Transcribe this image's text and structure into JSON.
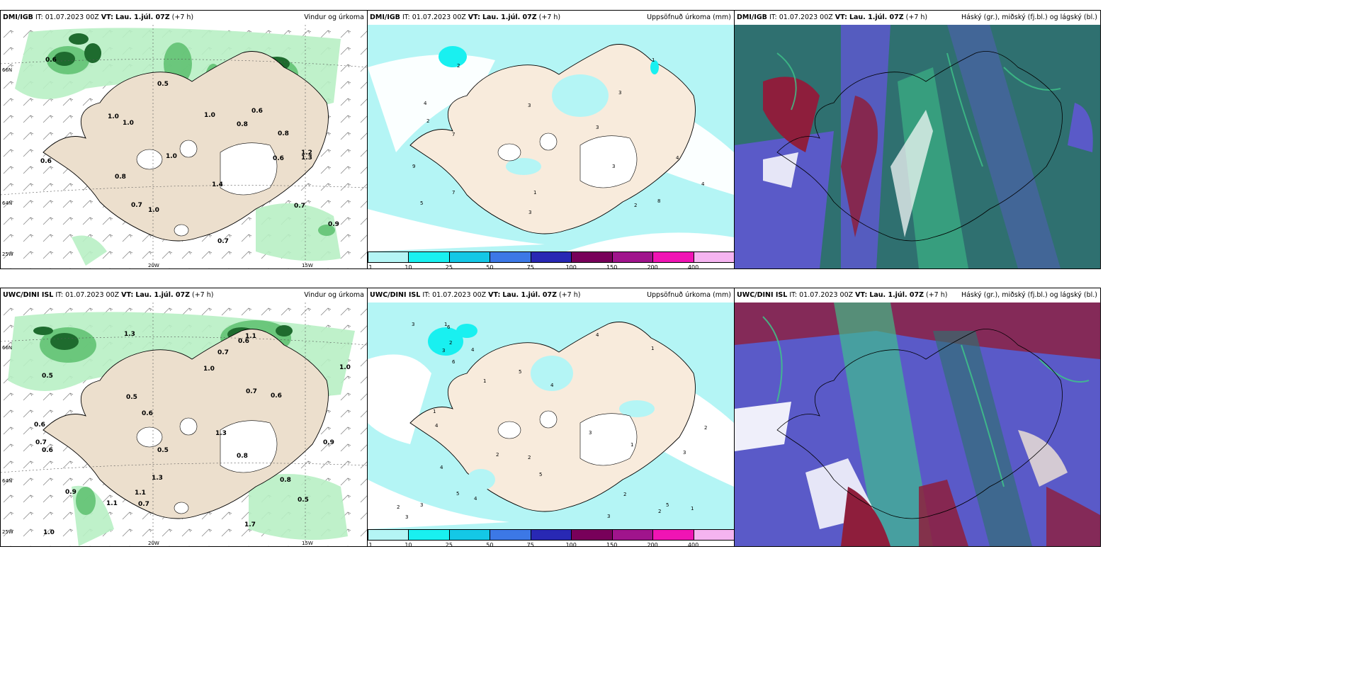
{
  "panels": [
    {
      "model": "DMI/IGB",
      "it_label": "IT:",
      "it": "01.07.2023 00Z",
      "vt_label": "VT:",
      "vt": "Lau. 1.júl. 07Z",
      "lead": "(+7 h)",
      "product": "Vindur og úrkoma"
    },
    {
      "model": "DMI/IGB",
      "it_label": "IT:",
      "it": "01.07.2023 00Z",
      "vt_label": "VT:",
      "vt": "Lau. 1.júl. 07Z",
      "lead": "(+7 h)",
      "product": "Uppsöfnuð úrkoma (mm)"
    },
    {
      "model": "DMI/IGB",
      "it_label": "IT:",
      "it": "01.07.2023 00Z",
      "vt_label": "VT:",
      "vt": "Lau. 1.júl. 07Z",
      "lead": "(+7 h)",
      "product": "Háský (gr.), miðský (fj.bl.) og lágský (bl.)"
    },
    {
      "model": "UWC/DINI ISL",
      "it_label": "IT:",
      "it": "01.07.2023 00Z",
      "vt_label": "VT:",
      "vt": "Lau. 1.júl. 07Z",
      "lead": "(+7 h)",
      "product": "Vindur og úrkoma"
    },
    {
      "model": "UWC/DINI ISL",
      "it_label": "IT:",
      "it": "01.07.2023 00Z",
      "vt_label": "VT:",
      "vt": "Lau. 1.júl. 07Z",
      "lead": "(+7 h)",
      "product": "Uppsöfnuð úrkoma (mm)"
    },
    {
      "model": "UWC/DINI ISL",
      "it_label": "IT:",
      "it": "01.07.2023 00Z",
      "vt_label": "VT:",
      "vt": "Lau. 1.júl. 07Z",
      "lead": "(+7 h)",
      "product": "Háský (gr.), miðský (fj.bl.) og lágský (bl.)"
    }
  ],
  "axis_labels": {
    "lat66": "66N",
    "lat64": "64N",
    "lon25": "25W",
    "lon20": "20W",
    "lon15": "15W",
    "lat66e": "66N",
    "lat64e": "64N"
  },
  "colorbar": {
    "labels": [
      "1",
      "10",
      "25",
      "50",
      "75",
      "100",
      "150",
      "200",
      "400"
    ],
    "colors": [
      "#b4f5f5",
      "#19f0f0",
      "#14c8e6",
      "#3c78e6",
      "#2828b4",
      "#78005a",
      "#a0148c",
      "#f014b4",
      "#f5b4f0"
    ]
  },
  "wind_precip_labels_top": [
    "0.6",
    "1.0",
    "1.0",
    "0.7",
    "1.0",
    "1.4",
    "0.8",
    "1.2",
    "0.6",
    "0.9",
    "1.0",
    "0.8",
    "0.8",
    "0.7",
    "0.7",
    "1.0",
    "1.3",
    "0.6",
    "0.6",
    "0.5"
  ],
  "wind_precip_labels_bottom": [
    "0.5",
    "0.6",
    "0.6",
    "1.0",
    "1.3",
    "1.1",
    "0.6",
    "1.0",
    "0.5",
    "0.8",
    "0.7",
    "1.0",
    "0.7",
    "0.5",
    "0.6",
    "0.7",
    "0.8",
    "0.6",
    "0.9",
    "0.7",
    "1.1",
    "0.5",
    "1.1",
    "1.3",
    "0.9",
    "1.7",
    "1.3"
  ],
  "accum_labels_top": [
    "2",
    "3",
    "4",
    "2",
    "3",
    "3",
    "4",
    "3",
    "2",
    "1",
    "8",
    "3",
    "4",
    "7",
    "9",
    "7",
    "5",
    "1"
  ],
  "accum_labels_bottom": [
    "2",
    "4",
    "6",
    "5",
    "3",
    "4",
    "2",
    "3",
    "5",
    "4",
    "1",
    "2",
    "3",
    "4",
    "1",
    "2",
    "3",
    "5",
    "6",
    "1",
    "3",
    "2",
    "1",
    "4",
    "3",
    "5",
    "2",
    "1",
    "4",
    "3",
    "2",
    "1"
  ],
  "colors": {
    "land": "#f3e6d6",
    "land_wind": "#ecdfcd",
    "glacier": "#ffffff",
    "precip_light": "#b8f0c4",
    "precip_mid": "#5cbf6e",
    "precip_dark": "#1e6b2e",
    "accum_light": "#b4f5f5",
    "accum_mid": "#19f0f0",
    "cloud_high": "#2f7070",
    "cloud_mid": "#3ec48a",
    "cloud_low": "#5a5ac8",
    "cloud_red": "#8e1e3c"
  }
}
